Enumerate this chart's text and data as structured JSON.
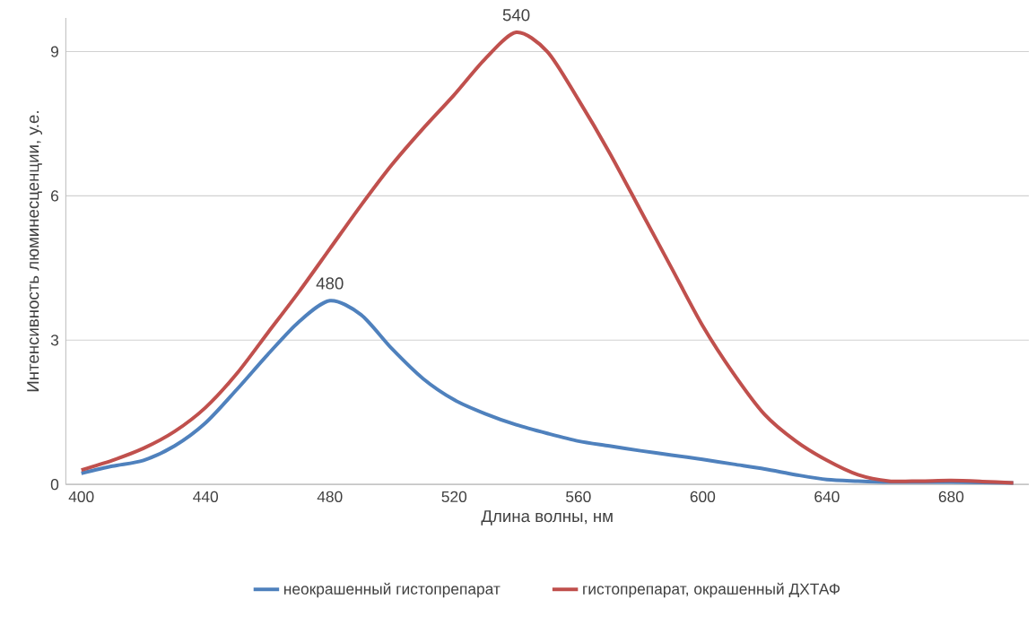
{
  "chart_data": {
    "type": "line",
    "xlabel": "Длина волны, нм",
    "ylabel": "Интенсивность люминесценции, у.е.",
    "x": [
      400,
      410,
      420,
      430,
      440,
      450,
      460,
      470,
      480,
      490,
      500,
      510,
      520,
      530,
      540,
      550,
      560,
      570,
      580,
      590,
      600,
      610,
      620,
      630,
      640,
      650,
      660,
      670,
      680,
      690,
      700
    ],
    "series": [
      {
        "name": "неокрашенный гистопрепарат",
        "color": "#4f81bd",
        "values": [
          0.23,
          0.38,
          0.5,
          0.8,
          1.28,
          1.97,
          2.7,
          3.38,
          3.82,
          3.53,
          2.82,
          2.2,
          1.76,
          1.47,
          1.24,
          1.06,
          0.9,
          0.8,
          0.7,
          0.61,
          0.52,
          0.42,
          0.32,
          0.2,
          0.1,
          0.07,
          0.05,
          0.05,
          0.05,
          0.04,
          0.03
        ]
      },
      {
        "name": "гистопрепарат, окрашенный ДХТАФ",
        "color": "#c0504d",
        "values": [
          0.3,
          0.5,
          0.75,
          1.1,
          1.6,
          2.3,
          3.15,
          4.0,
          4.9,
          5.8,
          6.65,
          7.4,
          8.1,
          8.85,
          9.4,
          9.0,
          8.0,
          6.9,
          5.7,
          4.5,
          3.3,
          2.3,
          1.45,
          0.9,
          0.5,
          0.2,
          0.07,
          0.07,
          0.08,
          0.06,
          0.03
        ]
      }
    ],
    "annotations": [
      {
        "text": "480",
        "x": 480,
        "y": 3.82
      },
      {
        "text": "540",
        "x": 540,
        "y": 9.4
      }
    ],
    "xlim": [
      395,
      705
    ],
    "ylim": [
      0,
      9.7
    ],
    "xticks": [
      400,
      440,
      480,
      520,
      560,
      600,
      640,
      680
    ],
    "yticks": [
      0,
      3,
      6,
      9
    ],
    "grid": "y",
    "legend": "bottom",
    "line_style": "solid"
  }
}
